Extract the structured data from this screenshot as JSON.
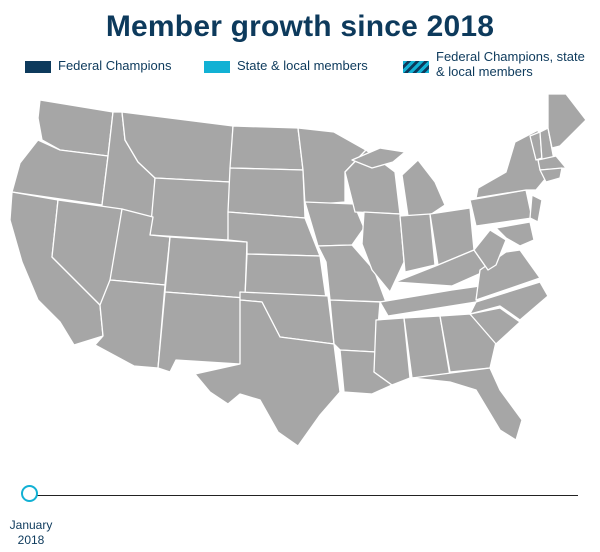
{
  "title": "Member growth since 2018",
  "legend": [
    {
      "label": "Federal Champions",
      "color": "#0d3a5c"
    },
    {
      "label": "State & local members",
      "color": "#12b1d4"
    },
    {
      "label": "Federal Champions, state & local members",
      "color": "#12b1d4"
    }
  ],
  "map": {
    "region": "United States (contiguous)",
    "default_state_color": "#a6a6a6"
  },
  "timeline": {
    "month": "January",
    "year": "2018"
  }
}
